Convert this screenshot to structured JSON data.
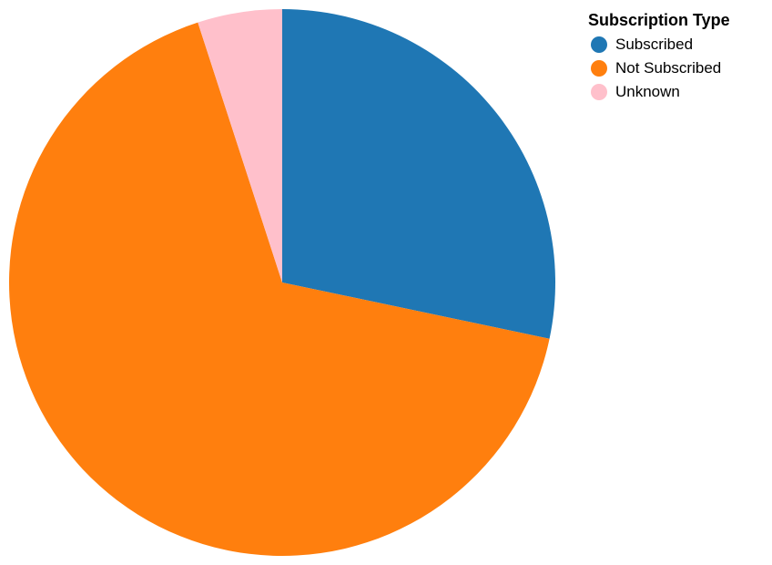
{
  "chart_data": {
    "type": "pie",
    "legend": {
      "title": "Subscription Type",
      "position": "top-right"
    },
    "categories": [
      "Subscribed",
      "Not Subscribed",
      "Unknown"
    ],
    "values": [
      28.3,
      66.7,
      5.0
    ],
    "colors": [
      "#1f77b4",
      "#ff7f0e",
      "#ffc0cb"
    ],
    "start_angle": "top",
    "direction": "clockwise"
  }
}
